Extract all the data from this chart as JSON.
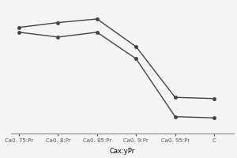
{
  "x_labels": [
    "Ca0. 75:Pr",
    "Ca0. 8:Pr",
    "Ca0. 85:Pr",
    "Ca0. 9:Pr",
    "Ca0. 95:Pr",
    "C"
  ],
  "x_values": [
    0,
    1,
    2,
    3,
    4,
    5
  ],
  "series1": [
    0.88,
    0.92,
    0.95,
    0.72,
    0.3,
    0.29
  ],
  "series2": [
    0.84,
    0.8,
    0.84,
    0.62,
    0.14,
    0.13
  ],
  "xlabel": "Cax:yPr",
  "line_color": "#444444",
  "marker": "o",
  "marker_size": 3,
  "bg_color": "#f5f5f5",
  "fig_color": "#f0f0f0",
  "ylim": [
    0.0,
    1.08
  ],
  "xlim": [
    -0.2,
    5.5
  ]
}
